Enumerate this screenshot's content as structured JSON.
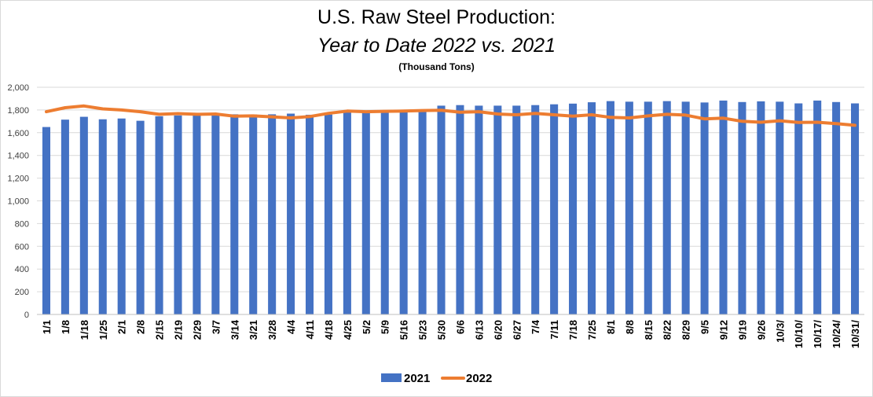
{
  "chart_data": {
    "type": "bar+line",
    "title": "U.S. Raw Steel Production:",
    "subtitle": "Year to Date 2022 vs. 2021",
    "units": "(Thousand Tons)",
    "ylim": [
      0,
      2000
    ],
    "yticks": [
      "0",
      "200",
      "400",
      "600",
      "800",
      "1,000",
      "1,200",
      "1,400",
      "1,600",
      "1,800",
      "2,000"
    ],
    "grid": true,
    "legend_position": "bottom",
    "categories": [
      "1/1",
      "1/8",
      "1/18",
      "1/25",
      "2/1",
      "2/8",
      "2/15",
      "2/19",
      "2/29",
      "3/7",
      "3/14",
      "3/21",
      "3/28",
      "4/4",
      "4/11",
      "4/18",
      "4/25",
      "5/2",
      "5/9",
      "5/16",
      "5/23",
      "5/30",
      "6/6",
      "6/13",
      "6/20",
      "6/27",
      "7/4",
      "7/11",
      "7/18",
      "7/25",
      "8/1",
      "8/8",
      "8/15",
      "8/22",
      "8/29",
      "9/5",
      "9/12",
      "9/19",
      "9/26",
      "10/3/",
      "10/10/",
      "10/17/",
      "10/24/",
      "10/31/"
    ],
    "series": [
      {
        "name": "2021",
        "kind": "bar",
        "color": "#4472C4",
        "values": [
          1650,
          1715,
          1740,
          1718,
          1725,
          1705,
          1745,
          1752,
          1755,
          1758,
          1762,
          1760,
          1762,
          1768,
          1758,
          1760,
          1780,
          1782,
          1775,
          1785,
          1790,
          1838,
          1843,
          1838,
          1838,
          1838,
          1843,
          1850,
          1856,
          1868,
          1878,
          1873,
          1873,
          1878,
          1873,
          1866,
          1883,
          1870,
          1876,
          1873,
          1858,
          1883,
          1870,
          1858
        ]
      },
      {
        "name": "2022",
        "kind": "line",
        "color": "#ED7D31",
        "values": [
          1785,
          1820,
          1835,
          1810,
          1800,
          1785,
          1762,
          1768,
          1762,
          1765,
          1745,
          1748,
          1740,
          1730,
          1742,
          1770,
          1790,
          1785,
          1788,
          1790,
          1795,
          1798,
          1780,
          1785,
          1765,
          1758,
          1770,
          1758,
          1745,
          1758,
          1735,
          1730,
          1748,
          1762,
          1755,
          1722,
          1728,
          1700,
          1692,
          1705,
          1690,
          1692,
          1680,
          1665
        ]
      }
    ]
  }
}
